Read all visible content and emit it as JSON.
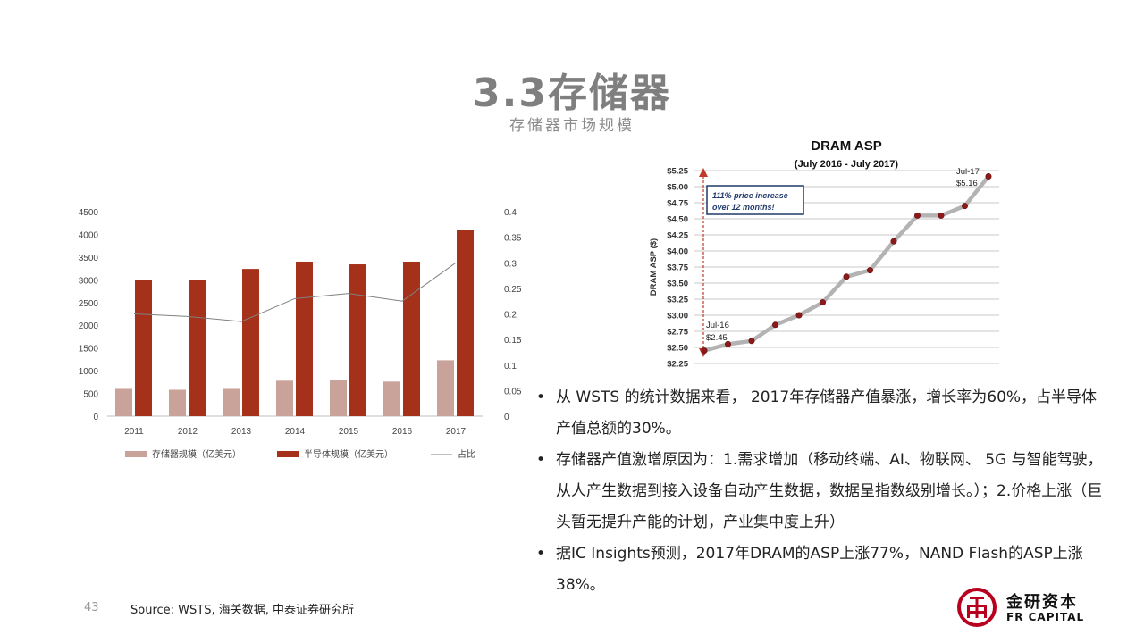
{
  "header": {
    "title": "3.3存储器",
    "subtitle": "存储器市场规模"
  },
  "bullets": [
    "从 WSTS 的统计数据来看， 2017年存储器产值暴涨，增长率为60%，占半导体产值总额的30%。",
    "存储器产值激增原因为：1.需求增加（移动终端、AI、物联网、 5G 与智能驾驶，从人产生数据到接入设备自动产生数据，数据呈指数级别增长。）；2.价格上涨（巨头暂无提升产能的计划，产业集中度上升）",
    "据IC Insights预测，2017年DRAM的ASP上涨77%，NAND Flash的ASP上涨38%。"
  ],
  "footer": {
    "page_number": "43",
    "source": "Source: WSTS, 海关数据, 中泰证券研究所"
  },
  "logo": {
    "name_cn": "金研资本",
    "name_en": "FR CAPITAL",
    "color": "#b8001f"
  },
  "chart_data": [
    {
      "type": "bar",
      "categories": [
        "2011",
        "2012",
        "2013",
        "2014",
        "2015",
        "2016",
        "2017"
      ],
      "series": [
        {
          "name": "存储器规模（亿美元）",
          "type": "bar",
          "color": "#c9a29a",
          "values": [
            600,
            580,
            600,
            780,
            800,
            760,
            1230
          ]
        },
        {
          "name": "半导体规模（亿美元）",
          "type": "bar",
          "color": "#a5311a",
          "values": [
            3000,
            3000,
            3240,
            3400,
            3340,
            3400,
            4090
          ]
        },
        {
          "name": "占比",
          "type": "line",
          "axis": "right",
          "color": "#808080",
          "values": [
            0.2,
            0.195,
            0.185,
            0.23,
            0.24,
            0.225,
            0.3
          ]
        }
      ],
      "ylim": [
        0,
        4500
      ],
      "yticks": [
        0,
        500,
        1000,
        1500,
        2000,
        2500,
        3000,
        3500,
        4000,
        4500
      ],
      "y2lim": [
        0,
        0.4
      ],
      "y2ticks": [
        0,
        0.05,
        0.1,
        0.15,
        0.2,
        0.25,
        0.3,
        0.35,
        0.4
      ],
      "legend_position": "bottom"
    },
    {
      "type": "line",
      "title": "DRAM ASP",
      "subtitle": "(July 2016 - July 2017)",
      "ylabel": "DRAM ASP ($)",
      "ylim": [
        2.25,
        5.25
      ],
      "yticks": [
        "$2.25",
        "$2.50",
        "$2.75",
        "$3.00",
        "$3.25",
        "$3.50",
        "$3.75",
        "$4.00",
        "$4.25",
        "$4.50",
        "$4.75",
        "$5.00",
        "$5.25"
      ],
      "values": [
        2.45,
        2.55,
        2.6,
        2.85,
        3.0,
        3.2,
        3.6,
        3.7,
        4.15,
        4.55,
        4.55,
        4.7,
        5.16
      ],
      "annotations": {
        "box": "111% price increase over 12 months!",
        "start_label": "Jul-16",
        "start_value": "$2.45",
        "end_label": "Jul-17",
        "end_value": "$5.16"
      },
      "line_color": "#b3b3b3",
      "marker_color": "#8b1a1a",
      "grid": true
    }
  ]
}
